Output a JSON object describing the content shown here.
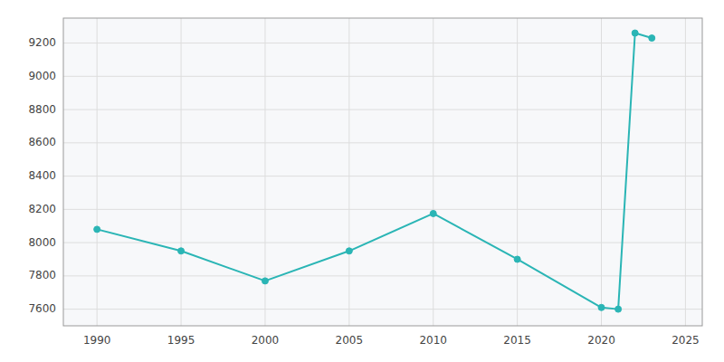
{
  "chart_data": {
    "type": "line",
    "x": [
      1990,
      1995,
      2000,
      2005,
      2010,
      2015,
      2020,
      2021,
      2022,
      2023
    ],
    "values": [
      8080,
      7950,
      7770,
      7950,
      8175,
      7900,
      7610,
      7600,
      9260,
      9230
    ],
    "color": "#2ab5b5",
    "marker": "circle",
    "xlim": [
      1988,
      2026
    ],
    "ylim": [
      7500,
      9350
    ],
    "xticks": [
      1990,
      1995,
      2000,
      2005,
      2010,
      2015,
      2020,
      2025
    ],
    "yticks": [
      7600,
      7800,
      8000,
      8200,
      8400,
      8600,
      8800,
      9000,
      9200
    ],
    "grid": true
  }
}
